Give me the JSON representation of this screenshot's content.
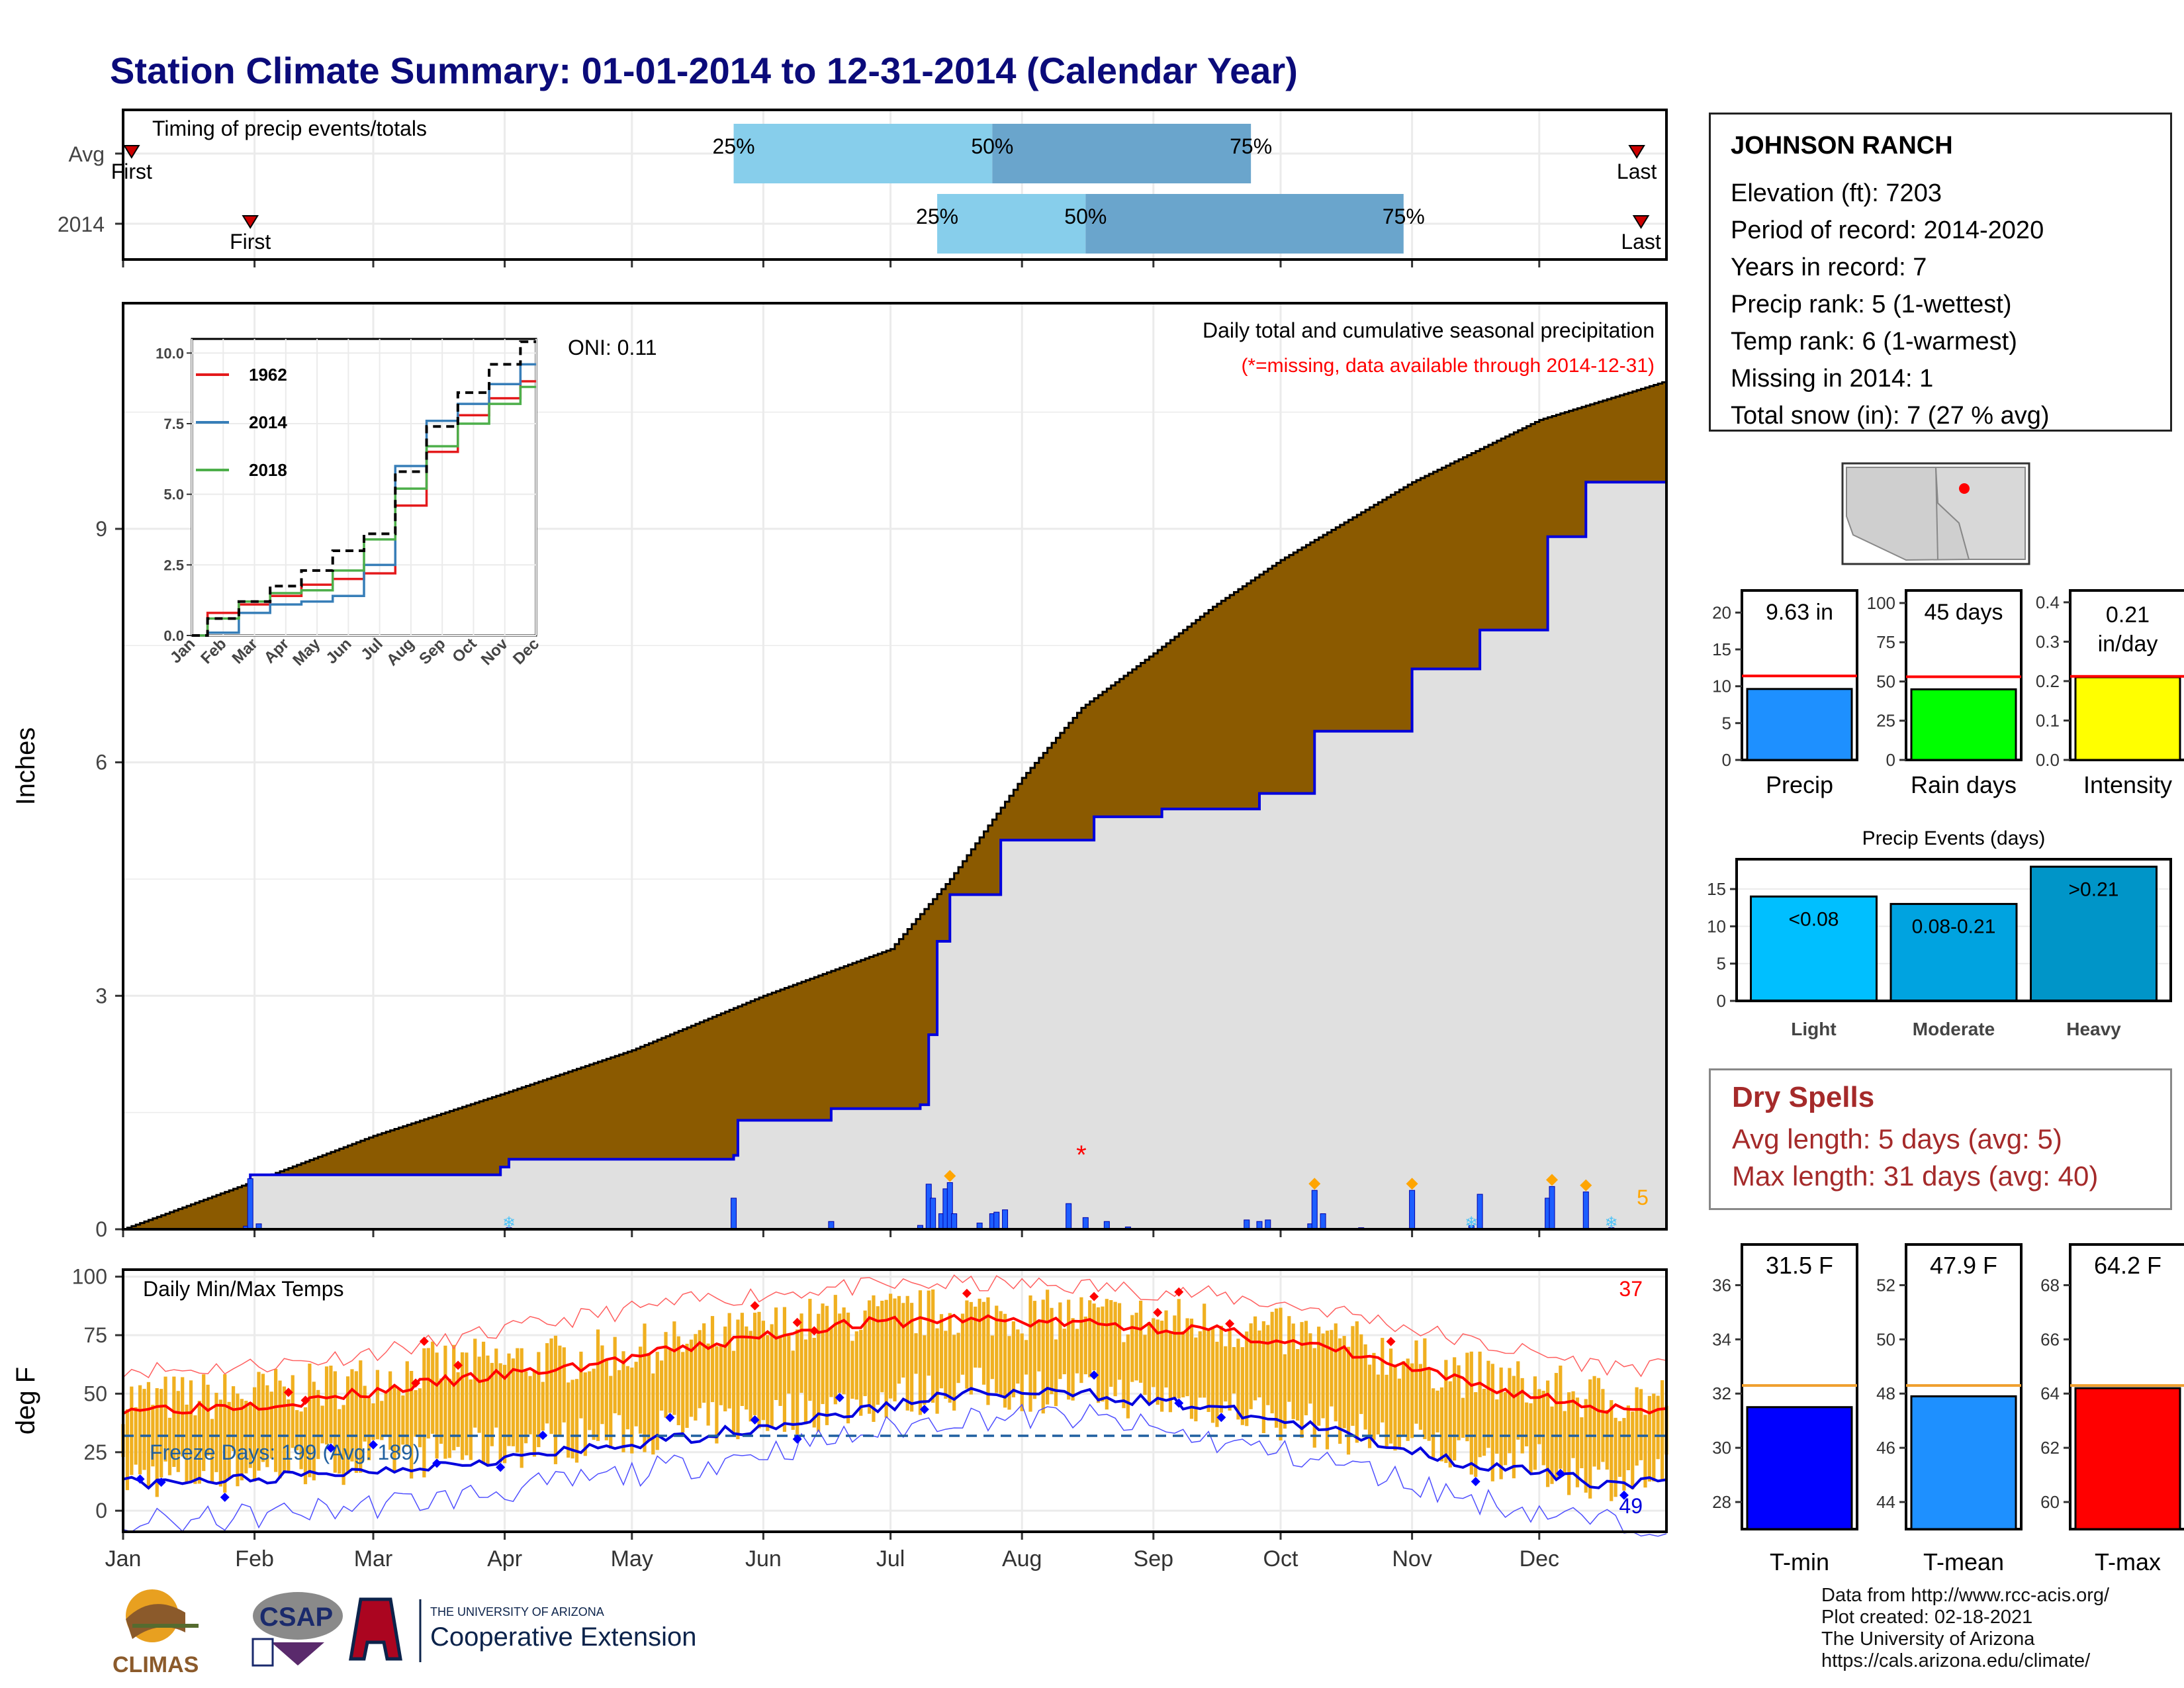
{
  "page": {
    "title": "Station Climate Summary: 01-01-2014 to 12-31-2014 (Calendar Year)"
  },
  "station": {
    "name": "JOHNSON RANCH",
    "lines": [
      "Elevation (ft): 7203",
      "Period of record: 2014-2020",
      "Years in record: 7",
      "Precip rank: 5 (1-wettest)",
      "Temp rank: 6 (1-warmest)",
      "Missing in 2014: 1",
      "Total snow (in): 7 (27 % avg)"
    ]
  },
  "dry_spells": {
    "title": "Dry Spells",
    "avg": "Avg length: 5 days (avg: 5)",
    "max": "Max length: 31 days (avg: 40)"
  },
  "credits": {
    "lines": [
      "Data from http://www.rcc-acis.org/",
      "Plot created: 02-18-2021",
      "The University of Arizona",
      "https://cals.arizona.edu/climate/"
    ]
  },
  "logos": {
    "climas": "CLIMAS",
    "csap": "CSAP",
    "ua_small": "THE UNIVERSITY OF ARIZONA",
    "ua_big": "Cooperative Extension"
  },
  "colors": {
    "title": "#0b0b7a",
    "brown": "#8b5a00",
    "precip_bar": "#1e5eff",
    "orange": "#f0b020",
    "red": "#ff0000",
    "blue": "#0000ee",
    "light_blue": "#87ceeb",
    "mid_blue": "#6aa5cc"
  },
  "chart_data": [
    {
      "id": "timing",
      "type": "bar",
      "title": "Timing of precip events/totals",
      "rows": [
        {
          "label": "Avg",
          "p25": "2014-05-25",
          "p50": "2014-07-25",
          "p75": "2014-09-24",
          "first": "2014-01-03",
          "last": "2014-12-24",
          "p25_label": "25%",
          "p50_label": "50%",
          "p75_label": "75%",
          "first_label": "First",
          "last_label": "Last"
        },
        {
          "label": "2014",
          "p25": "2014-07-12",
          "p50": "2014-08-16",
          "p75": "2014-10-30",
          "first": "2014-01-31",
          "last": "2014-12-25",
          "p25_label": "25%",
          "p50_label": "50%",
          "p75_label": "75%",
          "first_label": "First",
          "last_label": "Last"
        }
      ]
    },
    {
      "id": "precip",
      "type": "area",
      "title": "Daily total and cumulative seasonal precipitation",
      "subtitle": "(*=missing, data available through 2014-12-31)",
      "ylabel": "Inches",
      "ylim": [
        0,
        11.9
      ],
      "yticks": [
        0,
        3,
        6,
        9
      ],
      "oni": "ONI: 0.11",
      "count_label": "5",
      "missing_marker": {
        "date": "2014-08-15",
        "value": 0.98,
        "symbol": "*"
      },
      "avg_cumulative_key": [
        [
          "2014-01-01",
          0
        ],
        [
          "2014-01-31",
          0.6
        ],
        [
          "2014-03-01",
          1.2
        ],
        [
          "2014-04-01",
          1.75
        ],
        [
          "2014-05-01",
          2.3
        ],
        [
          "2014-06-01",
          3.0
        ],
        [
          "2014-07-01",
          3.6
        ],
        [
          "2014-07-15",
          4.5
        ],
        [
          "2014-08-01",
          5.8
        ],
        [
          "2014-08-15",
          6.7
        ],
        [
          "2014-09-01",
          7.4
        ],
        [
          "2014-09-15",
          8.0
        ],
        [
          "2014-10-01",
          8.6
        ],
        [
          "2014-11-01",
          9.6
        ],
        [
          "2014-12-01",
          10.4
        ],
        [
          "2014-12-31",
          10.9
        ]
      ],
      "obs_cumulative_key": [
        [
          "2014-01-01",
          0
        ],
        [
          "2014-01-30",
          0.0
        ],
        [
          "2014-01-31",
          0.7
        ],
        [
          "2014-03-31",
          0.8
        ],
        [
          "2014-04-02",
          0.9
        ],
        [
          "2014-05-25",
          0.95
        ],
        [
          "2014-05-26",
          1.4
        ],
        [
          "2014-06-17",
          1.55
        ],
        [
          "2014-07-08",
          1.6
        ],
        [
          "2014-07-10",
          2.5
        ],
        [
          "2014-07-12",
          3.7
        ],
        [
          "2014-07-15",
          4.3
        ],
        [
          "2014-07-27",
          5.0
        ],
        [
          "2014-08-15",
          5.0
        ],
        [
          "2014-08-18",
          5.3
        ],
        [
          "2014-09-03",
          5.4
        ],
        [
          "2014-09-26",
          5.6
        ],
        [
          "2014-10-09",
          6.4
        ],
        [
          "2014-10-31",
          6.4
        ],
        [
          "2014-11-01",
          7.2
        ],
        [
          "2014-11-17",
          7.7
        ],
        [
          "2014-12-02",
          7.7
        ],
        [
          "2014-12-03",
          8.9
        ],
        [
          "2014-12-11",
          8.9
        ],
        [
          "2014-12-12",
          9.6
        ],
        [
          "2014-12-31",
          9.6
        ]
      ],
      "daily": [
        [
          "2014-01-30",
          0.04
        ],
        [
          "2014-01-31",
          0.65
        ],
        [
          "2014-02-02",
          0.07
        ],
        [
          "2014-04-02",
          0.02
        ],
        [
          "2014-04-15",
          0.01
        ],
        [
          "2014-05-25",
          0.4
        ],
        [
          "2014-06-17",
          0.1
        ],
        [
          "2014-07-08",
          0.05
        ],
        [
          "2014-07-10",
          0.58
        ],
        [
          "2014-07-11",
          0.4
        ],
        [
          "2014-07-13",
          0.2
        ],
        [
          "2014-07-14",
          0.52
        ],
        [
          "2014-07-15",
          0.6
        ],
        [
          "2014-07-16",
          0.2
        ],
        [
          "2014-07-22",
          0.08
        ],
        [
          "2014-07-25",
          0.2
        ],
        [
          "2014-07-26",
          0.22
        ],
        [
          "2014-07-28",
          0.25
        ],
        [
          "2014-08-12",
          0.33
        ],
        [
          "2014-08-16",
          0.15
        ],
        [
          "2014-08-21",
          0.1
        ],
        [
          "2014-08-26",
          0.03
        ],
        [
          "2014-09-23",
          0.12
        ],
        [
          "2014-09-26",
          0.1
        ],
        [
          "2014-09-28",
          0.12
        ],
        [
          "2014-10-08",
          0.07
        ],
        [
          "2014-10-09",
          0.5
        ],
        [
          "2014-10-11",
          0.2
        ],
        [
          "2014-10-20",
          0.02
        ],
        [
          "2014-11-01",
          0.5
        ],
        [
          "2014-11-15",
          0.05
        ],
        [
          "2014-11-17",
          0.45
        ],
        [
          "2014-12-03",
          0.4
        ],
        [
          "2014-12-04",
          0.55
        ],
        [
          "2014-12-12",
          0.48
        ],
        [
          "2014-12-18",
          0.02
        ]
      ],
      "heavy_markers": [
        "2014-07-15",
        "2014-10-09",
        "2014-11-01",
        "2014-12-04",
        "2014-12-12"
      ],
      "snow_markers": [
        "2014-04-02",
        "2014-11-15",
        "2014-12-18"
      ],
      "inset": {
        "type": "line",
        "yticks": [
          0.0,
          2.5,
          5.0,
          7.5,
          10.0
        ],
        "ylim": [
          0,
          10.5
        ],
        "months": [
          "Jan",
          "Feb",
          "Mar",
          "Apr",
          "May",
          "Jun",
          "Jul",
          "Aug",
          "Sep",
          "Oct",
          "Nov",
          "Dec"
        ],
        "series": [
          {
            "name": "1962",
            "color": "#e41a1c",
            "values": [
              0,
              0.8,
              1.1,
              1.4,
              1.8,
              2.0,
              2.2,
              4.6,
              6.5,
              7.8,
              8.4,
              9.0
            ]
          },
          {
            "name": "2014",
            "color": "#377eb8",
            "values": [
              0,
              0.1,
              0.8,
              1.1,
              1.2,
              1.4,
              2.5,
              6.0,
              7.6,
              8.2,
              8.9,
              9.6
            ]
          },
          {
            "name": "2018",
            "color": "#4daf4a",
            "values": [
              0,
              0.6,
              1.2,
              1.5,
              1.6,
              2.3,
              3.4,
              5.2,
              6.7,
              7.5,
              8.2,
              8.8
            ]
          },
          {
            "name": "",
            "color": "#000000",
            "dash": true,
            "values": [
              0,
              0.6,
              1.2,
              1.75,
              2.3,
              3.0,
              3.6,
              5.8,
              7.4,
              8.6,
              9.6,
              10.4
            ]
          }
        ]
      }
    },
    {
      "id": "temps",
      "type": "line",
      "title": "Daily Min/Max Temps",
      "ylabel": "deg F",
      "ylim": [
        -9,
        103
      ],
      "yticks": [
        0,
        25,
        50,
        75,
        100
      ],
      "freeze_line": 32,
      "freeze_label": "Freeze Days: 199 (Avg: 189)",
      "hot_count": "37",
      "cold_count": "49",
      "months": [
        "Jan",
        "Feb",
        "Mar",
        "Apr",
        "May",
        "Jun",
        "Jul",
        "Aug",
        "Sep",
        "Oct",
        "Nov",
        "Dec"
      ],
      "avg_max_monthly": [
        44,
        47,
        55,
        61,
        70,
        79,
        82,
        80,
        77,
        68,
        54,
        44
      ],
      "avg_min_monthly": [
        12,
        15,
        20,
        25,
        32,
        40,
        50,
        50,
        44,
        33,
        20,
        12
      ],
      "rec_max_monthly": [
        60,
        64,
        72,
        82,
        90,
        95,
        97,
        96,
        92,
        85,
        72,
        62
      ],
      "rec_min_monthly": [
        -5,
        0,
        5,
        12,
        20,
        30,
        40,
        40,
        30,
        20,
        5,
        -5
      ],
      "obs_max_monthly": [
        48,
        52,
        62,
        65,
        72,
        82,
        85,
        83,
        80,
        72,
        58,
        48
      ],
      "obs_min_monthly": [
        15,
        20,
        24,
        30,
        36,
        44,
        52,
        51,
        45,
        34,
        24,
        14
      ]
    },
    {
      "id": "precip_bars",
      "type": "bar",
      "panels": [
        {
          "label": "Precip",
          "value": 9.63,
          "avg": 11.4,
          "text": "9.63 in",
          "yticks": [
            0,
            5,
            10,
            15,
            20
          ],
          "ylim": [
            0,
            23
          ],
          "color": "#1e90ff"
        },
        {
          "label": "Rain days",
          "value": 45,
          "avg": 53,
          "text": "45 days",
          "yticks": [
            0,
            25,
            50,
            75,
            100
          ],
          "ylim": [
            0,
            108
          ],
          "color": "#00ff00"
        },
        {
          "label": "Intensity",
          "value": 0.21,
          "avg": 0.212,
          "text": "0.21 in/day",
          "yticks": [
            0.0,
            0.1,
            0.2,
            0.3,
            0.4
          ],
          "ylim": [
            0,
            0.43
          ],
          "color": "#ffff00"
        }
      ]
    },
    {
      "id": "events",
      "type": "bar",
      "title": "Precip Events (days)",
      "categories": [
        "Light",
        "Moderate",
        "Heavy"
      ],
      "values": [
        14,
        13,
        18
      ],
      "labels": [
        "<0.08",
        "0.08-0.21",
        ">0.21"
      ],
      "yticks": [
        0,
        5,
        10,
        15
      ],
      "ylim": [
        0,
        19
      ],
      "colors": [
        "#00bfff",
        "#00a3e0",
        "#0095c8"
      ]
    },
    {
      "id": "temp_bars",
      "type": "bar",
      "panels": [
        {
          "label": "T-min",
          "value": 31.5,
          "avg": 32.3,
          "text": "31.5 F",
          "yticks": [
            28,
            30,
            32,
            34,
            36
          ],
          "ylim": [
            27,
            37.5
          ],
          "color": "#0000ff"
        },
        {
          "label": "T-mean",
          "value": 47.9,
          "avg": 48.3,
          "text": "47.9 F",
          "yticks": [
            44,
            46,
            48,
            50,
            52
          ],
          "ylim": [
            43,
            53.5
          ],
          "color": "#1e90ff"
        },
        {
          "label": "T-max",
          "value": 64.2,
          "avg": 64.3,
          "text": "64.2 F",
          "yticks": [
            60,
            62,
            64,
            66,
            68
          ],
          "ylim": [
            59,
            69.5
          ],
          "color": "#ff0000"
        }
      ]
    }
  ]
}
